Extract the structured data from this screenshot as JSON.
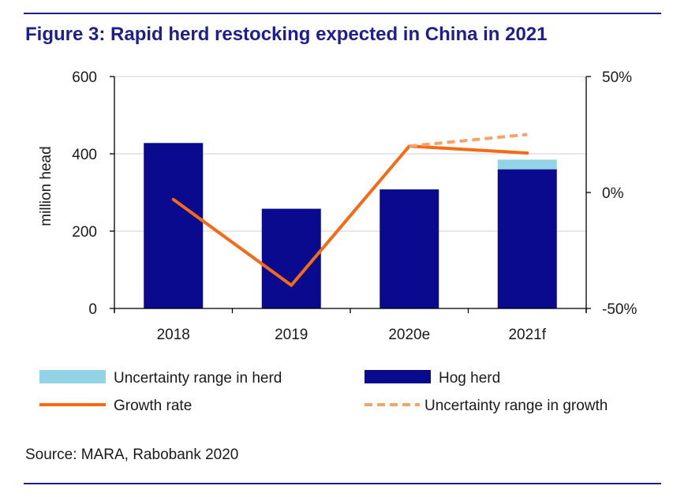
{
  "title": "Figure 3: Rapid herd restocking expected in China in 2021",
  "source": "Source: MARA, Rabobank 2020",
  "colors": {
    "rule": "#1e1f8c",
    "hog_herd": "#0a0a8f",
    "uncertainty_herd": "#92d4e6",
    "growth": "#f56a14",
    "uncertainty_growth": "#f4a36a",
    "grid": "#d9d9d9"
  },
  "chart_data": {
    "type": "bar",
    "categories": [
      "2018",
      "2019",
      "2020e",
      "2021f"
    ],
    "ylabel": "million head",
    "ylim": [
      0,
      600
    ],
    "y_ticks": [
      "0",
      "200",
      "400",
      "600"
    ],
    "y2lim": [
      -0.5,
      0.5
    ],
    "y2_ticks": [
      "-50%",
      "0%",
      "50%"
    ],
    "grid": true,
    "series": [
      {
        "name": "Hog herd",
        "kind": "bar",
        "axis": "left",
        "values": [
          428,
          258,
          308,
          360
        ]
      },
      {
        "name": "Uncertainty range in herd",
        "kind": "bar-stacked",
        "axis": "left",
        "values": [
          0,
          0,
          0,
          25
        ]
      },
      {
        "name": "Growth rate",
        "kind": "line",
        "axis": "right",
        "values": [
          -0.03,
          -0.4,
          0.2,
          0.17
        ]
      },
      {
        "name": "Uncertainty range in growth",
        "kind": "line-dashed",
        "axis": "right",
        "x": [
          "2020e",
          "2021f"
        ],
        "values": [
          0.2,
          0.25
        ]
      }
    ],
    "legend": {
      "placement": "bottom",
      "items": [
        {
          "label": "Uncertainty range in herd",
          "swatch": "box",
          "color": "#92d4e6"
        },
        {
          "label": "Hog herd",
          "swatch": "box",
          "color": "#0a0a8f"
        },
        {
          "label": "Growth rate",
          "swatch": "line",
          "color": "#f56a14"
        },
        {
          "label": "Uncertainty range in growth",
          "swatch": "dashed",
          "color": "#f4a36a"
        }
      ]
    }
  }
}
